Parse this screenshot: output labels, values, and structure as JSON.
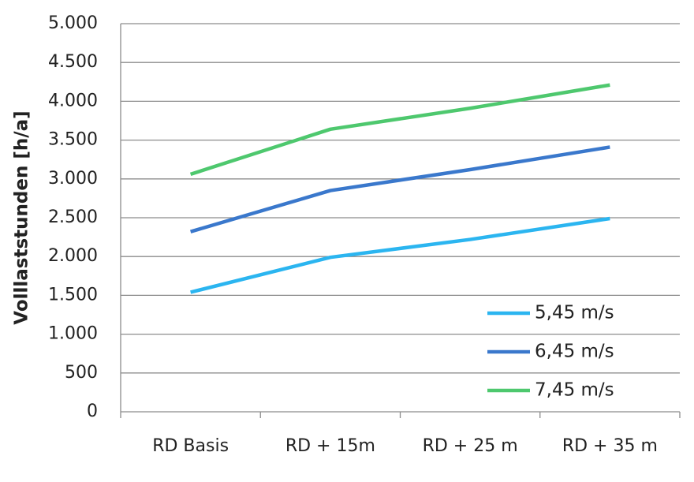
{
  "chart_data": {
    "type": "line",
    "y_label": "Volllaststunden [h/a]",
    "categories": [
      "RD Basis",
      "RD + 15m",
      "RD + 25 m",
      "RD + 35 m"
    ],
    "series": [
      {
        "name": "5,45 m/s",
        "color": "#2bb5f0",
        "values": [
          1540,
          1990,
          2220,
          2490
        ]
      },
      {
        "name": "6,45 m/s",
        "color": "#3a78cc",
        "values": [
          2320,
          2850,
          3120,
          3410
        ]
      },
      {
        "name": "7,45 m/s",
        "color": "#4ec86e",
        "values": [
          3060,
          3640,
          3910,
          4210
        ]
      }
    ],
    "ylim": [
      0,
      5000
    ],
    "yticks": [
      0,
      500,
      {
        "value": 1000,
        "label": "1.000"
      },
      {
        "value": 1500,
        "label": "1.500"
      },
      {
        "value": 2000,
        "label": "2.000"
      },
      {
        "value": 2500,
        "label": "2.500"
      },
      {
        "value": 3000,
        "label": "3.000"
      },
      {
        "value": 3500,
        "label": "3.500"
      },
      {
        "value": 4000,
        "label": "4.000"
      },
      {
        "value": 4500,
        "label": "4.500"
      },
      {
        "value": 5000,
        "label": "5.000"
      }
    ],
    "grid": true,
    "legend": "lower right"
  }
}
